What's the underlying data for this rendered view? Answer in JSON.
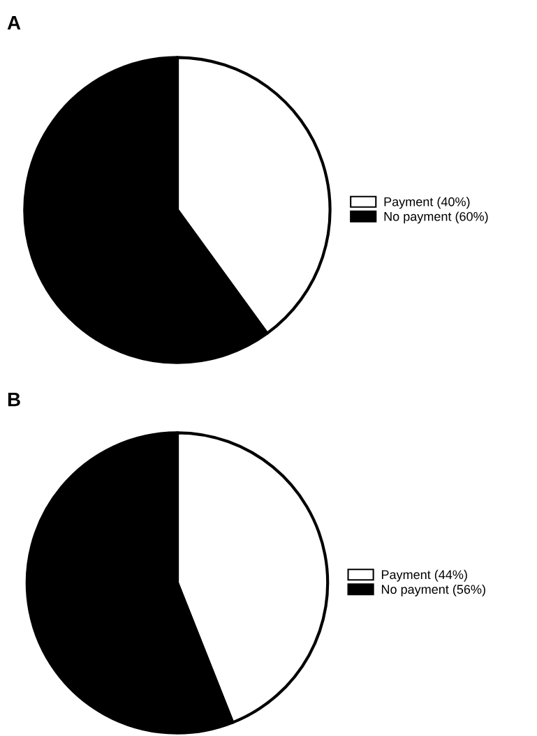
{
  "chart_data": [
    {
      "type": "pie",
      "title": "A",
      "categories": [
        "Payment (40%)",
        "No payment (60%)"
      ],
      "values": [
        40,
        60
      ],
      "colors": [
        "#ffffff",
        "#000000"
      ],
      "legend": "right"
    },
    {
      "type": "pie",
      "title": "B",
      "categories": [
        "Payment (44%)",
        "No payment (56%)"
      ],
      "values": [
        44,
        56
      ],
      "colors": [
        "#ffffff",
        "#000000"
      ],
      "legend": "right"
    }
  ]
}
